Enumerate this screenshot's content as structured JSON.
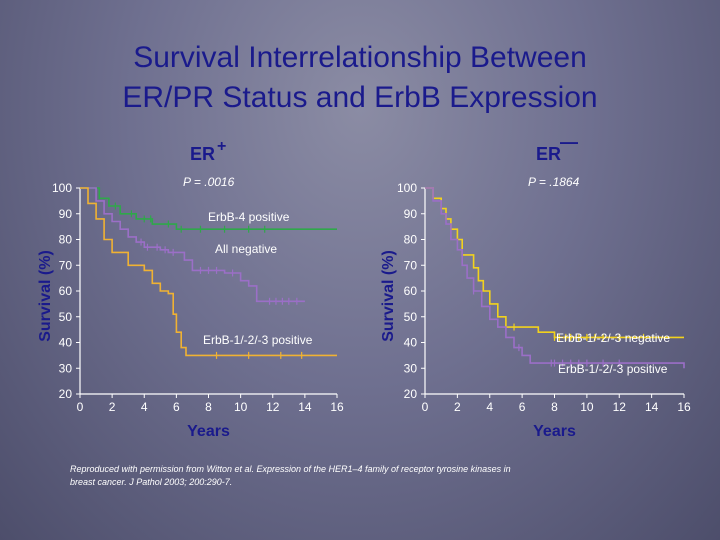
{
  "title": {
    "line1": "Survival Interrelationship Between",
    "line2": "ER/PR Status and ErbB Expression"
  },
  "caption": {
    "line1": "Reproduced with permission from Witton et al. Expression of the HER1–4 family of receptor tyrosine kinases in",
    "line2": "breast cancer. J Pathol 2003; 200:290-7."
  },
  "colors": {
    "green": "#2fa84a",
    "purple": "#9b6fc7",
    "orange": "#f0b233",
    "yellow": "#f2d21d",
    "axis": "#ffffff",
    "label": "#1a1a8c"
  },
  "chart_data": [
    {
      "type": "line",
      "panel_title": "ER",
      "panel_sign": "+",
      "p_value": "P = .0016",
      "xlabel": "Years",
      "ylabel": "Survival (%)",
      "xlim": [
        0,
        16
      ],
      "ylim": [
        20,
        100
      ],
      "xticks": [
        0,
        2,
        4,
        6,
        8,
        10,
        12,
        14,
        16
      ],
      "yticks": [
        20,
        30,
        40,
        50,
        60,
        70,
        80,
        90,
        100
      ],
      "series": [
        {
          "name": "ErbB-4 positive",
          "color": "#2fa84a",
          "x": [
            0,
            1.2,
            1.8,
            2.5,
            3.5,
            4.5,
            6,
            16
          ],
          "y": [
            100,
            96,
            93,
            90,
            88,
            86,
            84,
            84
          ],
          "censors": [
            2.2,
            3.2,
            4,
            4.4,
            5.5,
            6.3,
            7.5,
            9,
            10.5,
            11.5
          ]
        },
        {
          "name": "All negative",
          "color": "#9b6fc7",
          "x": [
            0,
            1,
            1.5,
            2,
            2.5,
            3,
            3.5,
            4,
            5,
            5.5,
            6.5,
            7,
            9,
            10,
            10.5,
            11,
            14
          ],
          "y": [
            100,
            95,
            90,
            87,
            84,
            81,
            79,
            77,
            76,
            75,
            72,
            68,
            67,
            64,
            62,
            56,
            56
          ],
          "censors": [
            3.8,
            4.2,
            4.8,
            5.3,
            5.8,
            7.5,
            8,
            8.5,
            9.5,
            11.8,
            12.2,
            12.6,
            13,
            13.5
          ]
        },
        {
          "name": "ErbB-1/-2/-3 positive",
          "color": "#f0b233",
          "x": [
            0,
            0.5,
            1,
            1.5,
            2,
            3,
            4,
            4.5,
            5,
            5.5,
            5.8,
            6,
            6.3,
            6.6,
            16
          ],
          "y": [
            100,
            94,
            88,
            80,
            75,
            70,
            68,
            63,
            60,
            59,
            51,
            44,
            38,
            35,
            35
          ],
          "censors": [
            8.5,
            10.5,
            12.5,
            13.8
          ]
        }
      ],
      "labels": [
        "ErbB-4 positive",
        "All negative",
        "ErbB-1/-2/-3 positive"
      ]
    },
    {
      "type": "line",
      "panel_title": "ER",
      "panel_sign": "—",
      "p_value": "P = .1864",
      "xlabel": "Years",
      "ylabel": "Survival (%)",
      "xlim": [
        0,
        16
      ],
      "ylim": [
        20,
        100
      ],
      "xticks": [
        0,
        2,
        4,
        6,
        8,
        10,
        12,
        14,
        16
      ],
      "yticks": [
        20,
        30,
        40,
        50,
        60,
        70,
        80,
        90,
        100
      ],
      "series": [
        {
          "name": "ErbB-1/-2/-3 negative",
          "color": "#f2d21d",
          "x": [
            0,
            0.5,
            1,
            1.3,
            1.6,
            2,
            2.3,
            3,
            3.3,
            3.6,
            4,
            4.5,
            5,
            7,
            8,
            16
          ],
          "y": [
            100,
            96,
            92,
            88,
            84,
            80,
            74,
            69,
            64,
            60,
            55,
            50,
            46,
            44,
            42,
            42
          ],
          "censors": [
            2.3,
            5.5,
            8,
            8.3,
            8.7,
            9,
            9.5,
            10,
            10.5,
            11,
            12,
            13.5
          ]
        },
        {
          "name": "ErbB-1/-2/-3 positive",
          "color": "#9b6fc7",
          "x": [
            0,
            0.5,
            1,
            1.3,
            1.6,
            2,
            2.3,
            2.6,
            3,
            3.5,
            4,
            4.5,
            5,
            5.5,
            6,
            6.5,
            16
          ],
          "y": [
            100,
            95,
            90,
            86,
            80,
            76,
            70,
            65,
            60,
            54,
            49,
            46,
            42,
            38,
            35,
            32,
            30
          ],
          "censors": [
            3,
            5.8,
            7.8,
            8,
            8.5,
            9,
            9.5,
            10,
            11,
            12
          ]
        }
      ],
      "labels": [
        "ErbB-1/-2/-3 negative",
        "ErbB-1/-2/-3 positive"
      ]
    }
  ]
}
